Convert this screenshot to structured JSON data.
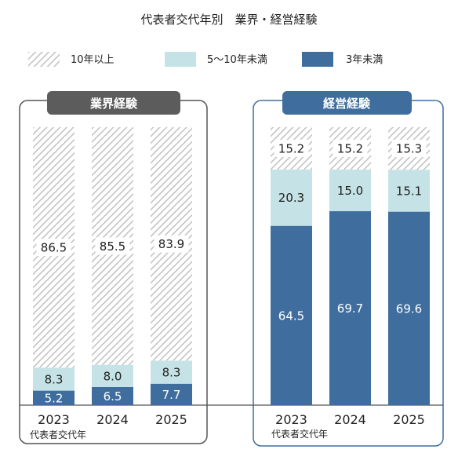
{
  "title": "代表者交代年別　業界・経営経験",
  "legend": [
    {
      "label": "10年以上",
      "pattern": "hatch"
    },
    {
      "label": "5～10年未満",
      "color": "#c5e3e6"
    },
    {
      "label": "3年未満",
      "color": "#3f6e9e"
    }
  ],
  "colors": {
    "hatch_stroke": "#c4c4c4",
    "light": "#c5e3e6",
    "dark": "#3f6e9e",
    "panel_left_header": "#5c5c5c",
    "panel_right_header": "#3f6e9e",
    "panel_right_border": "#3f6e9e",
    "panel_left_border": "#555555"
  },
  "chart_data": [
    {
      "type": "bar",
      "stacked": true,
      "title": "業界経験",
      "xlabel": "代表者交代年",
      "categories": [
        "2023",
        "2024",
        "2025"
      ],
      "series": [
        {
          "name": "3年未満",
          "values": [
            5.2,
            6.5,
            7.7
          ]
        },
        {
          "name": "5～10年未満",
          "values": [
            8.3,
            8.0,
            8.3
          ]
        },
        {
          "name": "10年以上",
          "values": [
            86.5,
            85.5,
            83.9
          ]
        }
      ]
    },
    {
      "type": "bar",
      "stacked": true,
      "title": "経営経験",
      "xlabel": "代表者交代年",
      "categories": [
        "2023",
        "2024",
        "2025"
      ],
      "series": [
        {
          "name": "3年未満",
          "values": [
            64.5,
            69.7,
            69.6
          ]
        },
        {
          "name": "5～10年未満",
          "values": [
            20.3,
            15.0,
            15.1
          ]
        },
        {
          "name": "10年以上",
          "values": [
            15.2,
            15.2,
            15.3
          ]
        }
      ]
    }
  ]
}
